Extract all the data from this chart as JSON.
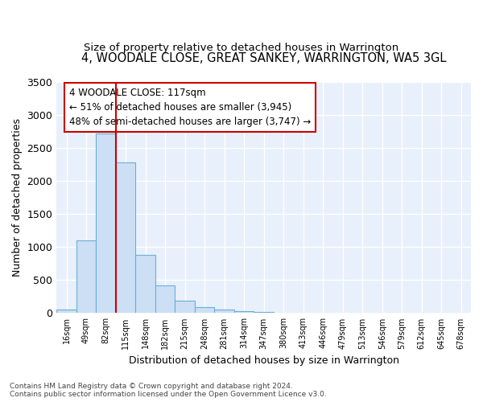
{
  "title": "4, WOODALE CLOSE, GREAT SANKEY, WARRINGTON, WA5 3GL",
  "subtitle": "Size of property relative to detached houses in Warrington",
  "xlabel": "Distribution of detached houses by size in Warrington",
  "ylabel": "Number of detached properties",
  "bin_labels": [
    "16sqm",
    "49sqm",
    "82sqm",
    "115sqm",
    "148sqm",
    "182sqm",
    "215sqm",
    "248sqm",
    "281sqm",
    "314sqm",
    "347sqm",
    "380sqm",
    "413sqm",
    "446sqm",
    "479sqm",
    "513sqm",
    "546sqm",
    "579sqm",
    "612sqm",
    "645sqm",
    "678sqm"
  ],
  "bar_values": [
    55,
    1100,
    2720,
    2280,
    880,
    415,
    185,
    95,
    55,
    35,
    20,
    10,
    5,
    0,
    0,
    0,
    0,
    0,
    0,
    0,
    0
  ],
  "bar_color": "#ccdff5",
  "bar_edge_color": "#6aaed6",
  "background_color": "#e8f0fb",
  "grid_color": "#ffffff",
  "annotation_text": "4 WOODALE CLOSE: 117sqm\n← 51% of detached houses are smaller (3,945)\n48% of semi-detached houses are larger (3,747) →",
  "vline_bin_index": 3,
  "vline_color": "#cc0000",
  "annotation_box_facecolor": "#ffffff",
  "annotation_box_edgecolor": "#cc0000",
  "ylim": [
    0,
    3500
  ],
  "yticks": [
    0,
    500,
    1000,
    1500,
    2000,
    2500,
    3000,
    3500
  ],
  "footnote": "Contains HM Land Registry data © Crown copyright and database right 2024.\nContains public sector information licensed under the Open Government Licence v3.0.",
  "title_fontsize": 10.5,
  "subtitle_fontsize": 9.5,
  "fig_facecolor": "#ffffff"
}
